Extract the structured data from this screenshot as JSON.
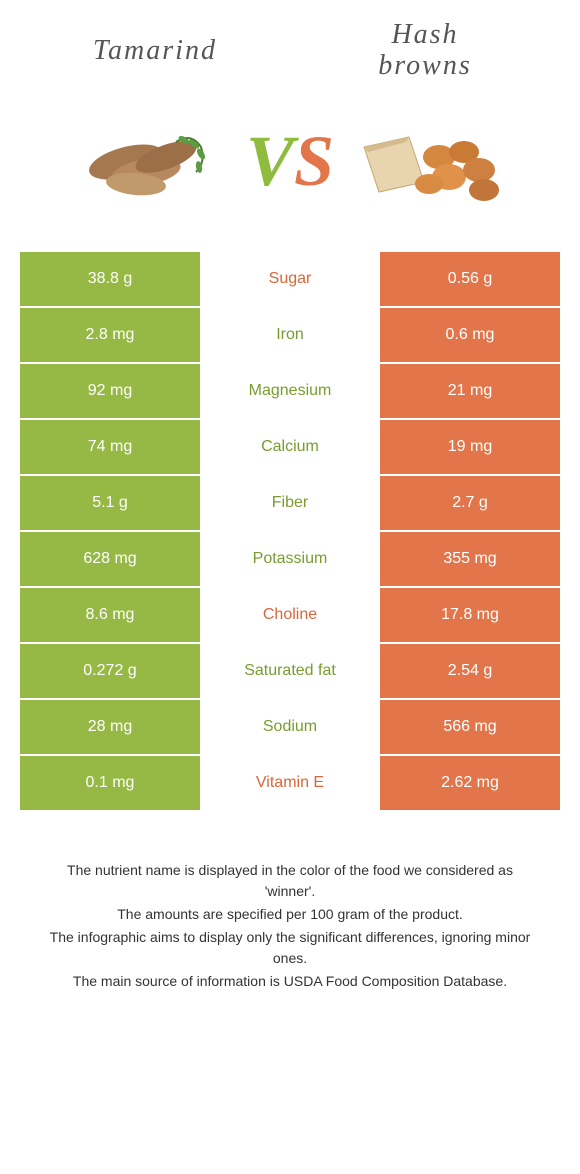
{
  "colors": {
    "left": "#95b944",
    "right": "#e2754a",
    "left_text": "#7a9c2f",
    "right_text": "#d9663a"
  },
  "header": {
    "left_title": "Tamarind",
    "right_title": "Hash browns"
  },
  "vs": {
    "v": "V",
    "s": "S"
  },
  "rows": [
    {
      "left": "38.8 g",
      "label": "Sugar",
      "right": "0.56 g",
      "winner": "right"
    },
    {
      "left": "2.8 mg",
      "label": "Iron",
      "right": "0.6 mg",
      "winner": "left"
    },
    {
      "left": "92 mg",
      "label": "Magnesium",
      "right": "21 mg",
      "winner": "left"
    },
    {
      "left": "74 mg",
      "label": "Calcium",
      "right": "19 mg",
      "winner": "left"
    },
    {
      "left": "5.1 g",
      "label": "Fiber",
      "right": "2.7 g",
      "winner": "left"
    },
    {
      "left": "628 mg",
      "label": "Potassium",
      "right": "355 mg",
      "winner": "left"
    },
    {
      "left": "8.6 mg",
      "label": "Choline",
      "right": "17.8 mg",
      "winner": "right"
    },
    {
      "left": "0.272 g",
      "label": "Saturated fat",
      "right": "2.54 g",
      "winner": "left"
    },
    {
      "left": "28 mg",
      "label": "Sodium",
      "right": "566 mg",
      "winner": "left"
    },
    {
      "left": "0.1 mg",
      "label": "Vitamin E",
      "right": "2.62 mg",
      "winner": "right"
    }
  ],
  "footer": {
    "l1": "The nutrient name is displayed in the color of the food we considered as 'winner'.",
    "l2": "The amounts are specified per 100 gram of the product.",
    "l3": "The infographic aims to display only the significant differences, ignoring minor ones.",
    "l4": "The main source of information is USDA Food Composition Database."
  }
}
